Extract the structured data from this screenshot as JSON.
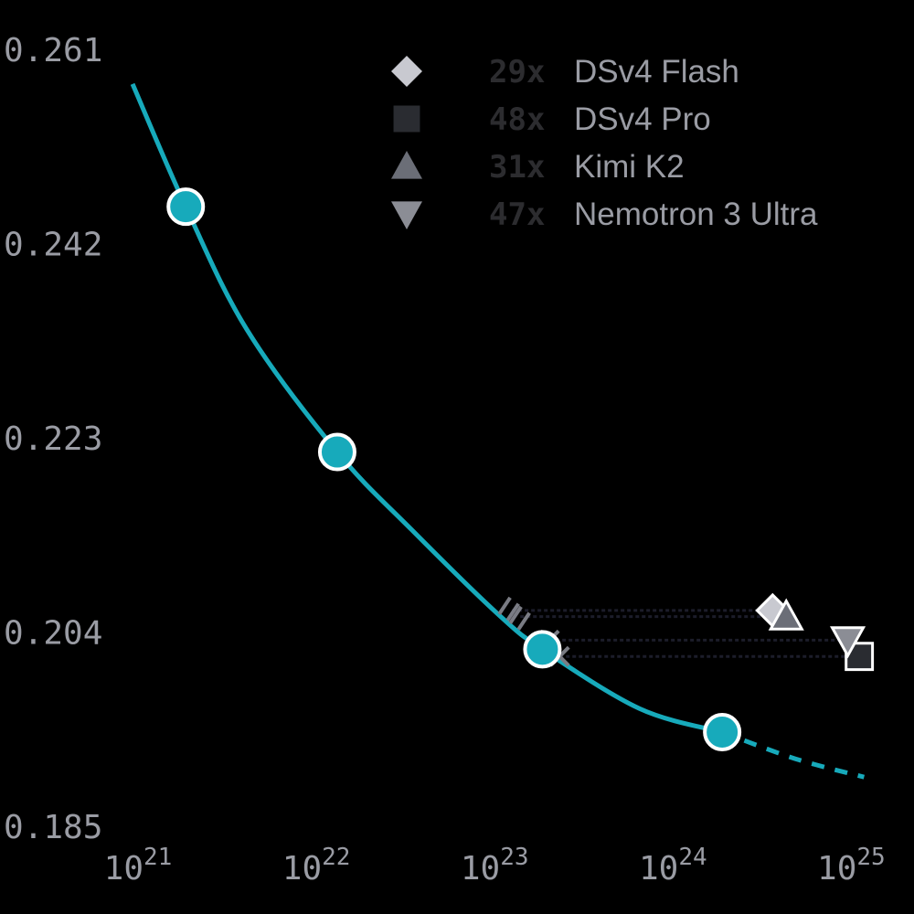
{
  "chart_data": {
    "type": "scaling",
    "xlog": true,
    "xlim": [
      6.31e+20,
      1.12e+25
    ],
    "xticks": [
      {
        "value": 1e+21,
        "label": "10",
        "sup": "21"
      },
      {
        "value": 1e+22,
        "label": "10",
        "sup": "22"
      },
      {
        "value": 1e+23,
        "label": "10",
        "sup": "23"
      },
      {
        "value": 1e+24,
        "label": "10",
        "sup": "24"
      },
      {
        "value": 1e+25,
        "label": "10",
        "sup": "25"
      }
    ],
    "ylim": [
      0.185,
      0.261
    ],
    "yticks": [
      0.185,
      0.204,
      0.223,
      0.242,
      0.261
    ],
    "curve": {
      "color": "#17aabb",
      "x": [
        7.9e+20,
        1.57e+21,
        3.45e+21,
        1.11e+22,
        2.9e+22,
        8.9e+22,
        1.57e+23,
        5.5e+23,
        1.6e+24
      ],
      "values": [
        0.2577,
        0.2457,
        0.2337,
        0.2217,
        0.2141,
        0.2058,
        0.2024,
        0.1966,
        0.1943
      ]
    },
    "extrapolation": {
      "color": "#17aabb",
      "x": [
        1.6e+24,
        4.1e+24,
        1e+25
      ],
      "values": [
        0.1943,
        0.1917,
        0.1899
      ]
    },
    "points": {
      "color": "#17aabb",
      "x": [
        1.57e+21,
        1.11e+22,
        1.57e+23,
        1.6e+24
      ],
      "values": [
        0.2457,
        0.2217,
        0.2024,
        0.1943
      ]
    },
    "series": [
      {
        "name": "DSv4 Flash",
        "multiplier": "29x",
        "marker": "diamond",
        "color": "#c8c9d0",
        "x": 3.07e+24,
        "value": 0.2062,
        "equivalent_x": 1.06e+23,
        "equivalent_marker": "hash"
      },
      {
        "name": "DSv4 Pro",
        "multiplier": "48x",
        "marker": "square",
        "color": "#2a2c31",
        "x": 9.4e+24,
        "value": 0.2017,
        "equivalent_x": 1.96e+23,
        "equivalent_marker": "cross"
      },
      {
        "name": "Kimi K2",
        "multiplier": "31x",
        "marker": "triangle",
        "color": "#6b6e77",
        "x": 3.66e+24,
        "value": 0.2056,
        "equivalent_x": 1.18e+23,
        "equivalent_marker": "hash"
      },
      {
        "name": "Nemotron 3 Ultra",
        "multiplier": "47x",
        "marker": "triangle-down",
        "color": "#8b8d95",
        "x": 8.1e+24,
        "value": 0.2033,
        "equivalent_x": 1.72e+23,
        "equivalent_marker": "cross"
      }
    ]
  }
}
